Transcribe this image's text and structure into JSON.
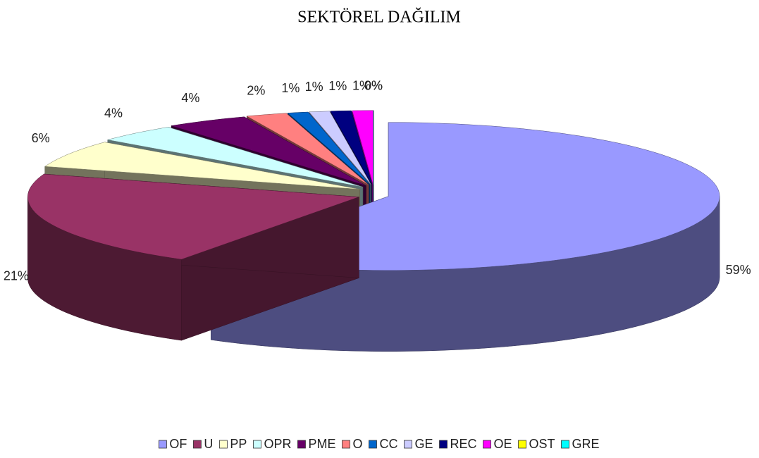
{
  "chart_data": {
    "type": "pie",
    "title": "SEKTÖREL DAĞILIM",
    "categories": [
      "OF",
      "U",
      "PP",
      "OPR",
      "PME",
      "O",
      "CC",
      "GE",
      "REC",
      "OE",
      "OST",
      "GRE"
    ],
    "values": [
      59,
      21,
      6,
      4,
      4,
      2,
      1,
      1,
      1,
      1,
      0,
      0
    ],
    "value_labels": [
      "59%",
      "21%",
      "6%",
      "4%",
      "4%",
      "2%",
      "1%",
      "1%",
      "1%",
      "1%",
      "0%",
      "0%"
    ],
    "colors": [
      "#9999ff",
      "#993366",
      "#ffffcc",
      "#ccffff",
      "#660066",
      "#ff8080",
      "#0066cc",
      "#ccccff",
      "#000080",
      "#ff00ff",
      "#ffff00",
      "#00ffff"
    ],
    "legend": "bottom"
  }
}
